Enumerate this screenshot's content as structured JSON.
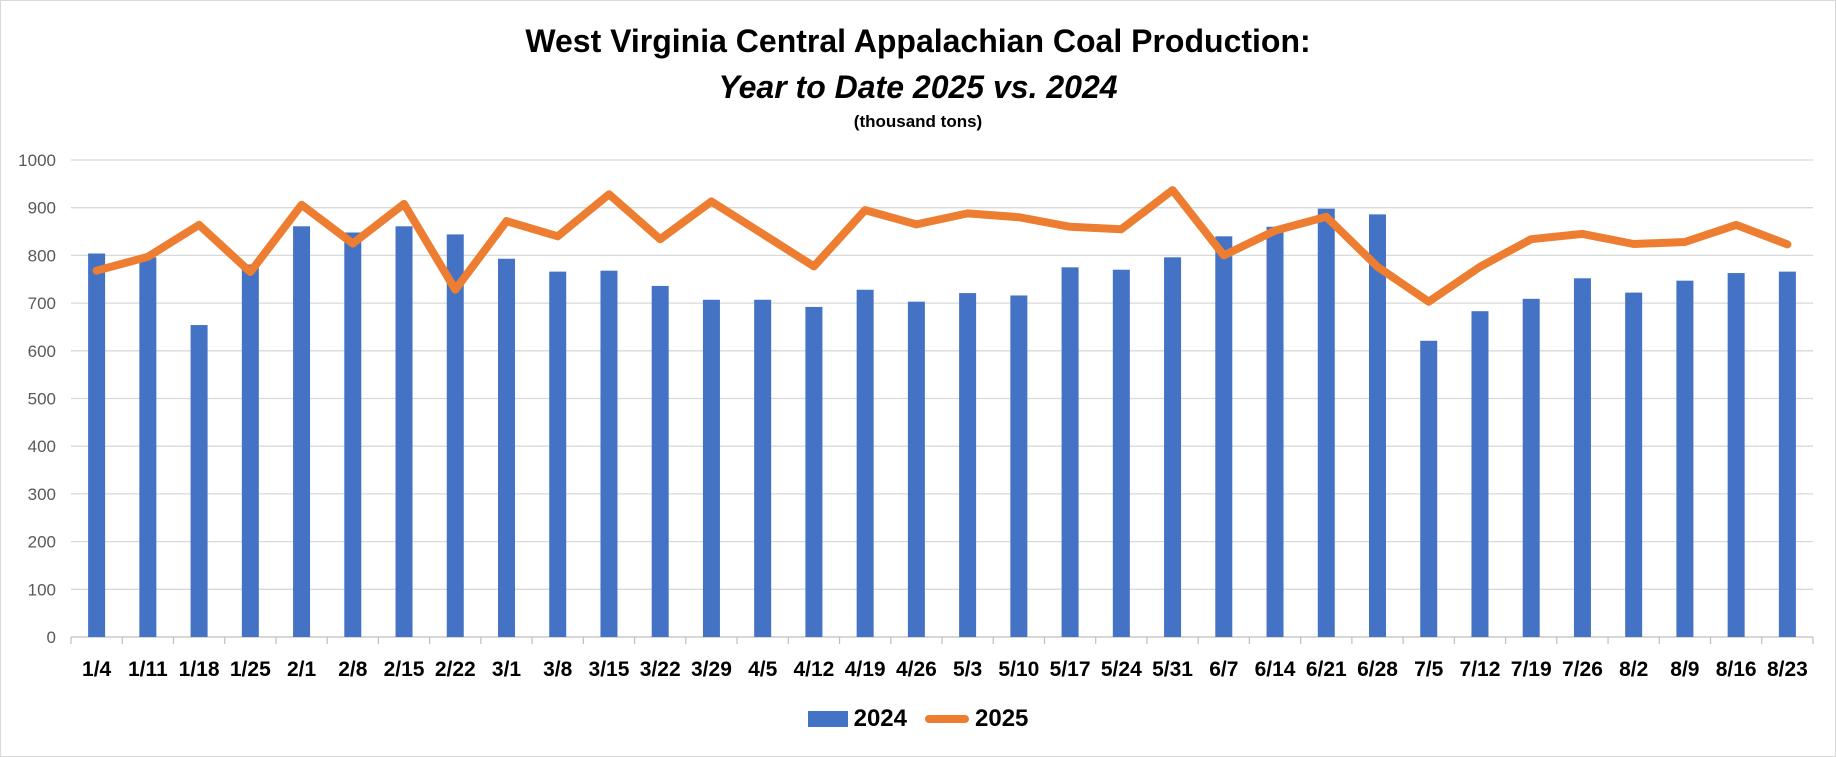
{
  "chart_data": {
    "type": "bar",
    "title": "West Virginia Central Appalachian Coal Production:",
    "subtitle": "Year to Date 2025 vs. 2024",
    "units": "(thousand tons)",
    "xlabel": "",
    "ylabel": "",
    "ylim": [
      0,
      1000
    ],
    "yticks": [
      "0",
      "100",
      "200",
      "300",
      "400",
      "500",
      "600",
      "700",
      "800",
      "900",
      "1000"
    ],
    "grid": true,
    "legend_position": "bottom",
    "categories": [
      "1/4",
      "1/11",
      "1/18",
      "1/25",
      "2/1",
      "2/8",
      "2/15",
      "2/22",
      "3/1",
      "3/8",
      "3/15",
      "3/22",
      "3/29",
      "4/5",
      "4/12",
      "4/19",
      "4/26",
      "5/3",
      "5/10",
      "5/17",
      "5/24",
      "5/31",
      "6/7",
      "6/14",
      "6/21",
      "6/28",
      "7/5",
      "7/12",
      "7/19",
      "7/26",
      "8/2",
      "8/9",
      "8/16",
      "8/23"
    ],
    "series": [
      {
        "name": "2024",
        "type": "bar",
        "color": "#4472c4",
        "values": [
          804,
          796,
          654,
          781,
          861,
          848,
          861,
          844,
          793,
          766,
          768,
          736,
          707,
          707,
          692,
          728,
          703,
          721,
          716,
          775,
          770,
          796,
          840,
          860,
          898,
          886,
          621,
          683,
          709,
          752,
          722,
          747,
          763,
          766
        ]
      },
      {
        "name": "2025",
        "type": "line",
        "color": "#ed7d31",
        "values": [
          768,
          797,
          864,
          765,
          906,
          825,
          908,
          728,
          872,
          840,
          928,
          834,
          913,
          845,
          777,
          895,
          865,
          888,
          880,
          860,
          855,
          937,
          800,
          852,
          881,
          776,
          703,
          776,
          834,
          845,
          824,
          828,
          864,
          823
        ]
      }
    ]
  }
}
